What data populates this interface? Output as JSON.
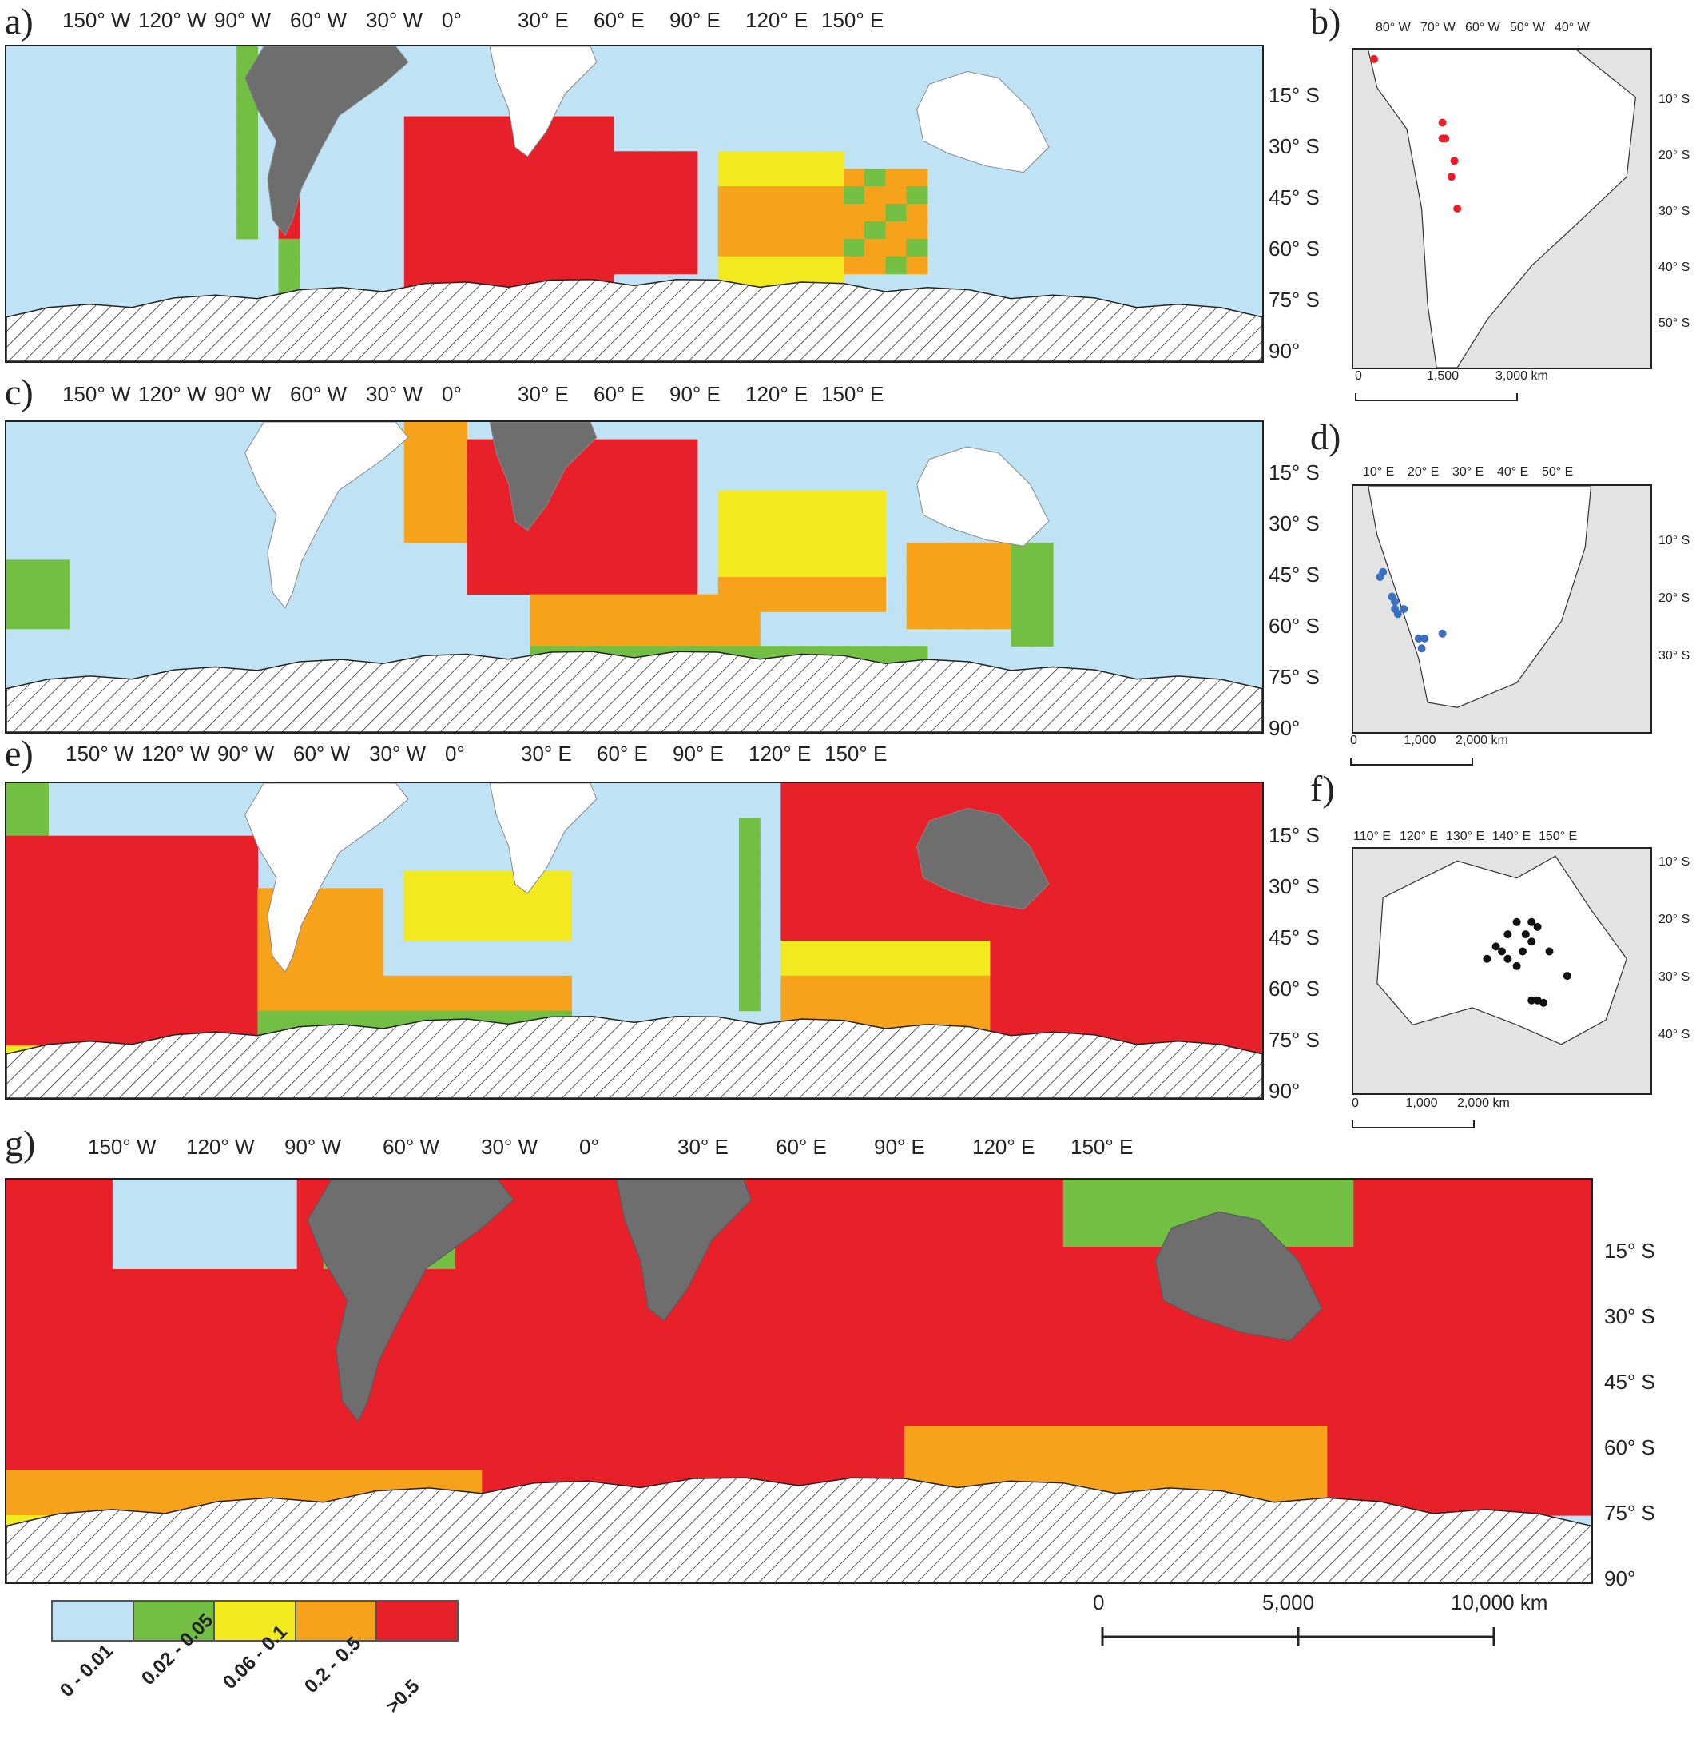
{
  "colors": {
    "ocean": "#bfe3f5",
    "land_white": "#ffffff",
    "land_gray": "#6e6e6e",
    "class_green": "#72bf44",
    "class_yellow": "#f2ea1e",
    "class_orange": "#f6a21b",
    "class_red": "#e8202a",
    "inset_bg": "#e3e3e3",
    "point_red": "#e8202a",
    "point_blue": "#3b6fbf",
    "point_black": "#111111"
  },
  "legend": {
    "classes": [
      {
        "label": "0 - 0.01",
        "color": "#bfe3f5"
      },
      {
        "label": "0.02 - 0.05",
        "color": "#72bf44"
      },
      {
        "label": "0.06 - 0.1",
        "color": "#f2ea1e"
      },
      {
        "label": "0.2 - 0.5",
        "color": "#f6a21b"
      },
      {
        "label": ">0.5",
        "color": "#e8202a"
      }
    ]
  },
  "panels": {
    "a": {
      "letter": "a)",
      "lon_ticks": [
        "150° W",
        "120° W",
        "90° W",
        "60° W",
        "30° W",
        "0°",
        "30° E",
        "60° E",
        "90° E",
        "120° E",
        "150° E"
      ],
      "lat_ticks": [
        "15° S",
        "30° S",
        "45° S",
        "60° S",
        "75° S",
        "90°"
      ],
      "source_region": "South America"
    },
    "b": {
      "letter": "b)",
      "lon_ticks": [
        "80° W",
        "70° W",
        "60° W",
        "50° W",
        "40° W"
      ],
      "lat_ticks": [
        "10° S",
        "20° S",
        "30° S",
        "40° S",
        "50° S"
      ],
      "scale": [
        "0",
        "1,500",
        "3,000 km"
      ]
    },
    "c": {
      "letter": "c)",
      "lon_ticks": [
        "150° W",
        "120° W",
        "90° W",
        "60° W",
        "30° W",
        "0°",
        "30° E",
        "60° E",
        "90° E",
        "120° E",
        "150° E"
      ],
      "lat_ticks": [
        "15° S",
        "30° S",
        "45° S",
        "60° S",
        "75° S",
        "90°"
      ],
      "source_region": "Southern Africa"
    },
    "d": {
      "letter": "d)",
      "lon_ticks": [
        "10° E",
        "20° E",
        "30° E",
        "40° E",
        "50° E"
      ],
      "lat_ticks": [
        "10° S",
        "20° S",
        "30° S"
      ],
      "scale": [
        "0",
        "1,000",
        "2,000 km"
      ]
    },
    "e": {
      "letter": "e)",
      "lon_ticks": [
        "150° W",
        "120° W",
        "90° W",
        "60° W",
        "30° W",
        "0°",
        "30° E",
        "60° E",
        "90° E",
        "120° E",
        "150° E"
      ],
      "lat_ticks": [
        "15° S",
        "30° S",
        "45° S",
        "60° S",
        "75° S",
        "90°"
      ],
      "source_region": "Australia"
    },
    "f": {
      "letter": "f)",
      "lon_ticks": [
        "110° E",
        "120° E",
        "130° E",
        "140° E",
        "150° E"
      ],
      "lat_ticks": [
        "10° S",
        "20° S",
        "30° S",
        "40° S"
      ],
      "scale": [
        "0",
        "1,000",
        "2,000 km"
      ]
    },
    "g": {
      "letter": "g)",
      "lon_ticks": [
        "150° W",
        "120° W",
        "90° W",
        "60° W",
        "30° W",
        "0°",
        "30° E",
        "60° E",
        "90° E",
        "120° E",
        "150° E"
      ],
      "lat_ticks": [
        "15° S",
        "30° S",
        "45° S",
        "60° S",
        "75° S",
        "90°"
      ],
      "scale": [
        "0",
        "5,000",
        "10,000 km"
      ]
    }
  }
}
